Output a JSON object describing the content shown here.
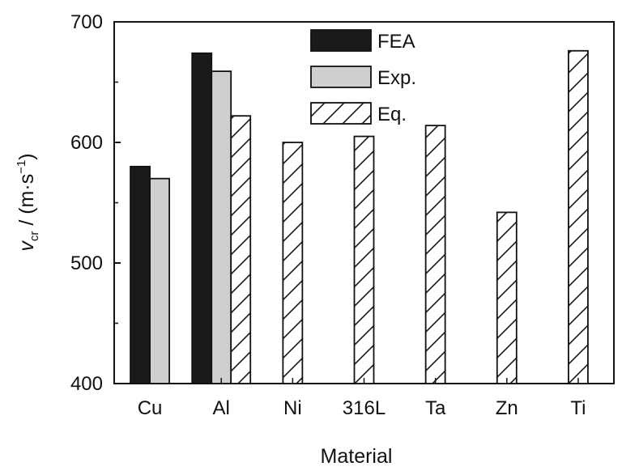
{
  "chart_data": {
    "type": "bar",
    "categories": [
      "Cu",
      "Al",
      "Ni",
      "316L",
      "Ta",
      "Zn",
      "Ti"
    ],
    "series": [
      {
        "name": "FEA",
        "values": [
          580,
          674,
          null,
          null,
          null,
          null,
          null
        ],
        "fill": "#1a1a1a",
        "pattern": "solid"
      },
      {
        "name": "Exp.",
        "values": [
          570,
          659,
          null,
          null,
          null,
          null,
          null
        ],
        "fill": "#cfcfcf",
        "pattern": "solid"
      },
      {
        "name": "Eq.",
        "values": [
          null,
          622,
          600,
          605,
          614,
          542,
          676
        ],
        "fill": "#ffffff",
        "pattern": "hatch"
      }
    ],
    "xlabel": "Material",
    "ylabel": {
      "var": "v",
      "sub": "cr",
      "rest": " / (m·s",
      "sup": "−1",
      "close": ")"
    },
    "ylim": [
      400,
      700
    ],
    "yticks": [
      400,
      500,
      600,
      700
    ],
    "grid": false,
    "legend_position": "top-center"
  }
}
